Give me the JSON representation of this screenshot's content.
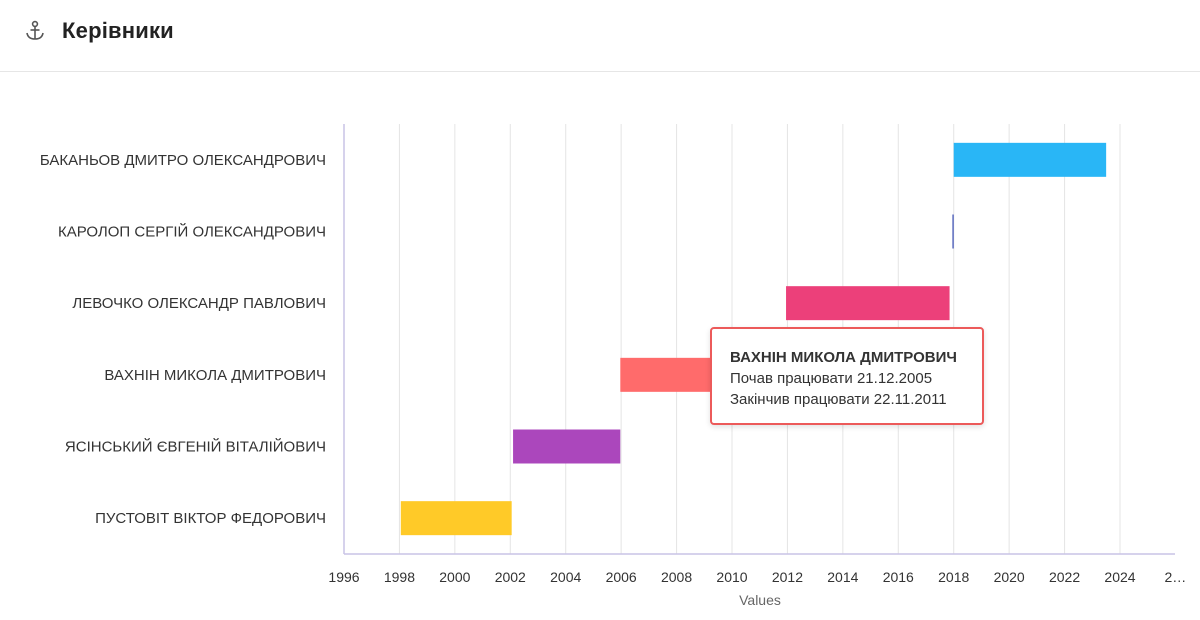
{
  "header": {
    "title": "Керівники",
    "icon": "anchor-icon"
  },
  "chart_data": {
    "type": "bar",
    "orientation": "horizontal",
    "variant": "timeline",
    "categories": [
      "БАКАНЬОВ ДМИТРО ОЛЕКСАНДРОВИЧ",
      "КАРОЛОП СЕРГІЙ ОЛЕКСАНДРОВИЧ",
      "ЛЕВОЧКО ОЛЕКСАНДР ПАВЛОВИЧ",
      "ВАХНІН МИКОЛА ДМИТРОВИЧ",
      "ЯСІНСЬКИЙ ЄВГЕНІЙ ВІТАЛІЙОВИЧ",
      "ПУСТОВІТ ВІКТОР ФЕДОРОВИЧ"
    ],
    "intervals": [
      {
        "start": 2018.0,
        "end": 2023.5,
        "color": "#29b6f6"
      },
      {
        "start": 2017.95,
        "end": 2018.0,
        "color": "#5c6bc0"
      },
      {
        "start": 2011.95,
        "end": 2017.85,
        "color": "#ec407a"
      },
      {
        "start": 2005.97,
        "end": 2011.89,
        "color": "#ff6b6b"
      },
      {
        "start": 2002.1,
        "end": 2005.97,
        "color": "#ab47bc"
      },
      {
        "start": 1998.05,
        "end": 2002.05,
        "color": "#ffca28"
      }
    ],
    "xlim": [
      1996,
      2025
    ],
    "x_ticks": [
      "1996",
      "1998",
      "2000",
      "2002",
      "2004",
      "2006",
      "2008",
      "2010",
      "2012",
      "2014",
      "2016",
      "2018",
      "2020",
      "2022",
      "2024",
      "2…"
    ],
    "xlabel": "Values",
    "grid": true,
    "tooltip": {
      "title": "ВАХНІН МИКОЛА ДМИТРОВИЧ",
      "line1": "Почав працювати 21.12.2005",
      "line2": "Закінчив працювати 22.11.2011"
    }
  }
}
